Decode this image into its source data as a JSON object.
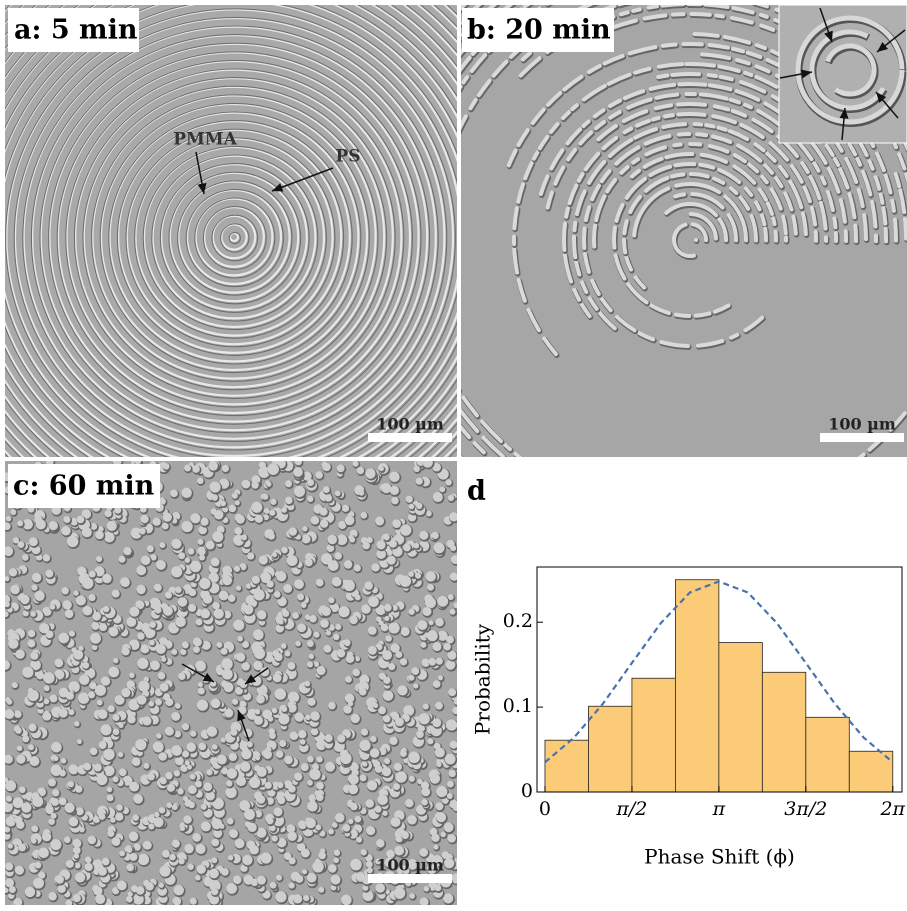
{
  "panels": [
    {
      "label": "a: 5 min",
      "scale_bar": "100 µm",
      "annotations": [
        "PMMA",
        "PS"
      ]
    },
    {
      "label": "b: 20 min",
      "scale_bar": "100 µm"
    },
    {
      "label": "c: 60 min",
      "scale_bar": "100 µm"
    }
  ],
  "chart_data": {
    "type": "histogram",
    "panel_label": "d",
    "xlabel": "Phase Shift (ϕ)",
    "ylabel": "Probability",
    "bins": [
      0,
      0.7854,
      1.5708,
      2.3562,
      3.1416,
      3.927,
      4.7124,
      5.4978,
      6.2832
    ],
    "values": [
      0.061,
      0.101,
      0.134,
      0.25,
      0.176,
      0.141,
      0.088,
      0.048
    ],
    "color": "#fccb78",
    "curve": {
      "color": "#4a72b0",
      "x": [
        0,
        0.5236,
        1.0472,
        1.5708,
        2.0944,
        2.618,
        3.1416,
        3.6652,
        4.1888,
        4.7124,
        5.236,
        5.7596,
        6.2832
      ],
      "values": [
        0.035,
        0.064,
        0.104,
        0.152,
        0.199,
        0.235,
        0.248,
        0.235,
        0.199,
        0.152,
        0.104,
        0.064,
        0.035
      ]
    },
    "xlim": [
      -0.144,
      6.45
    ],
    "ylim": [
      0,
      0.265
    ],
    "xticks": [
      0,
      {
        "value": 1.5708,
        "label": "π/2"
      },
      {
        "value": 3.1416,
        "label": "π"
      },
      {
        "value": 4.7124,
        "label": "3π/2"
      },
      {
        "value": 6.2832,
        "label": "2π"
      }
    ],
    "yticks": [
      0,
      0.1,
      0.2
    ]
  }
}
